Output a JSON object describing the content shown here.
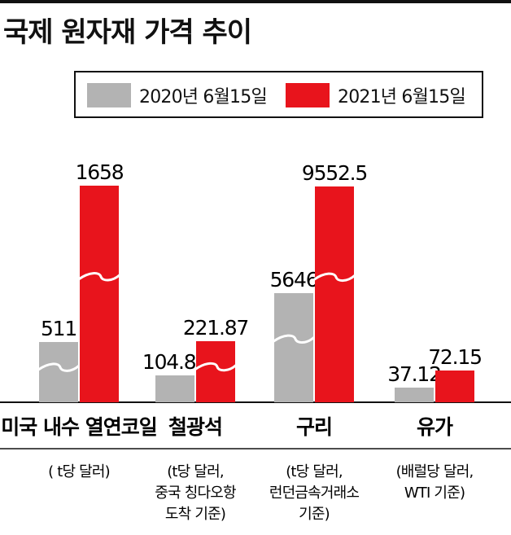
{
  "title": "국제 원자재 가격 추이",
  "legend": [
    {
      "label": "2020년 6월15일",
      "color": "#b3b3b3"
    },
    {
      "label": "2021년 6월15일",
      "color": "#e8141c"
    }
  ],
  "chart_data": {
    "type": "bar",
    "title": "국제 원자재 가격 추이",
    "axis_broken": true,
    "series": [
      {
        "name": "2020년 6월15일",
        "color": "#b3b3b3",
        "values": [
          511,
          104.85,
          5646,
          37.12
        ],
        "labels": [
          "511",
          "104.85",
          "5646",
          "37.12"
        ]
      },
      {
        "name": "2021년 6월15일",
        "color": "#e8141c",
        "values": [
          1658,
          221.87,
          9552.5,
          72.15
        ],
        "labels": [
          "1658",
          "221.87",
          "9552.5",
          "72.15"
        ]
      }
    ],
    "categories": [
      {
        "name": "미국 내수 열연코일",
        "notes": [
          "( t당 달러)"
        ]
      },
      {
        "name": "철광석",
        "notes": [
          "(t당 달러,",
          "중국 칭다오항",
          "도착 기준)"
        ]
      },
      {
        "name": "구리",
        "notes": [
          "(t당 달러,",
          "런던금속거래소",
          "기준)"
        ]
      },
      {
        "name": "유가",
        "notes": [
          "(배럴당 달러,",
          "WTI 기준)"
        ]
      }
    ]
  }
}
